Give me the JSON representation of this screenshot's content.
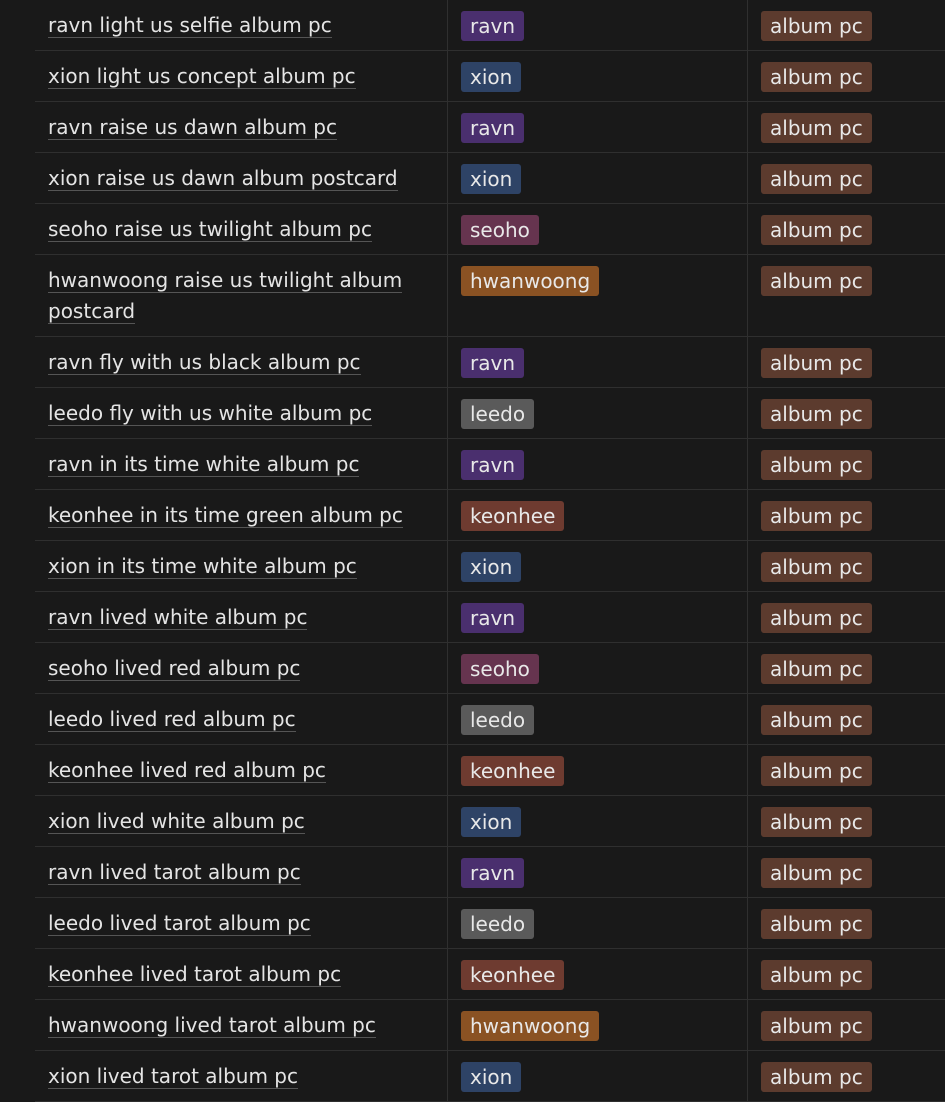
{
  "colors": {
    "background": "#191919",
    "ravn": "#4a2f6e",
    "xion": "#2e4366",
    "seoho": "#66344f",
    "hwanwoong": "#8a5223",
    "leedo": "#5a5a5a",
    "keonhee": "#6e3b30",
    "album_pc": "#5c3b2e"
  },
  "rows": [
    {
      "name": "ravn light us selfie album pc",
      "member": "ravn",
      "type": "album pc"
    },
    {
      "name": "xion light us concept album pc",
      "member": "xion",
      "type": "album pc"
    },
    {
      "name": "ravn raise us dawn album pc",
      "member": "ravn",
      "type": "album pc"
    },
    {
      "name": "xion raise us dawn album postcard",
      "member": "xion",
      "type": "album pc"
    },
    {
      "name": "seoho raise us twilight album pc",
      "member": "seoho",
      "type": "album pc"
    },
    {
      "name": "hwanwoong raise us twilight album postcard",
      "member": "hwanwoong",
      "type": "album pc"
    },
    {
      "name": "ravn fly with us black album pc",
      "member": "ravn",
      "type": "album pc"
    },
    {
      "name": "leedo fly with us white album pc",
      "member": "leedo",
      "type": "album pc"
    },
    {
      "name": "ravn in its time white album pc",
      "member": "ravn",
      "type": "album pc"
    },
    {
      "name": "keonhee in its time green album pc",
      "member": "keonhee",
      "type": "album pc"
    },
    {
      "name": "xion in its time white album pc",
      "member": "xion",
      "type": "album pc"
    },
    {
      "name": "ravn lived white album pc",
      "member": "ravn",
      "type": "album pc"
    },
    {
      "name": "seoho lived red album pc",
      "member": "seoho",
      "type": "album pc"
    },
    {
      "name": "leedo lived red album pc",
      "member": "leedo",
      "type": "album pc"
    },
    {
      "name": "keonhee lived red album pc",
      "member": "keonhee",
      "type": "album pc"
    },
    {
      "name": "xion lived white album pc",
      "member": "xion",
      "type": "album pc"
    },
    {
      "name": "ravn lived tarot album pc",
      "member": "ravn",
      "type": "album pc"
    },
    {
      "name": "leedo lived tarot album pc",
      "member": "leedo",
      "type": "album pc"
    },
    {
      "name": "keonhee lived tarot album pc",
      "member": "keonhee",
      "type": "album pc"
    },
    {
      "name": "hwanwoong lived tarot album pc",
      "member": "hwanwoong",
      "type": "album pc"
    },
    {
      "name": "xion lived tarot album pc",
      "member": "xion",
      "type": "album pc"
    }
  ]
}
